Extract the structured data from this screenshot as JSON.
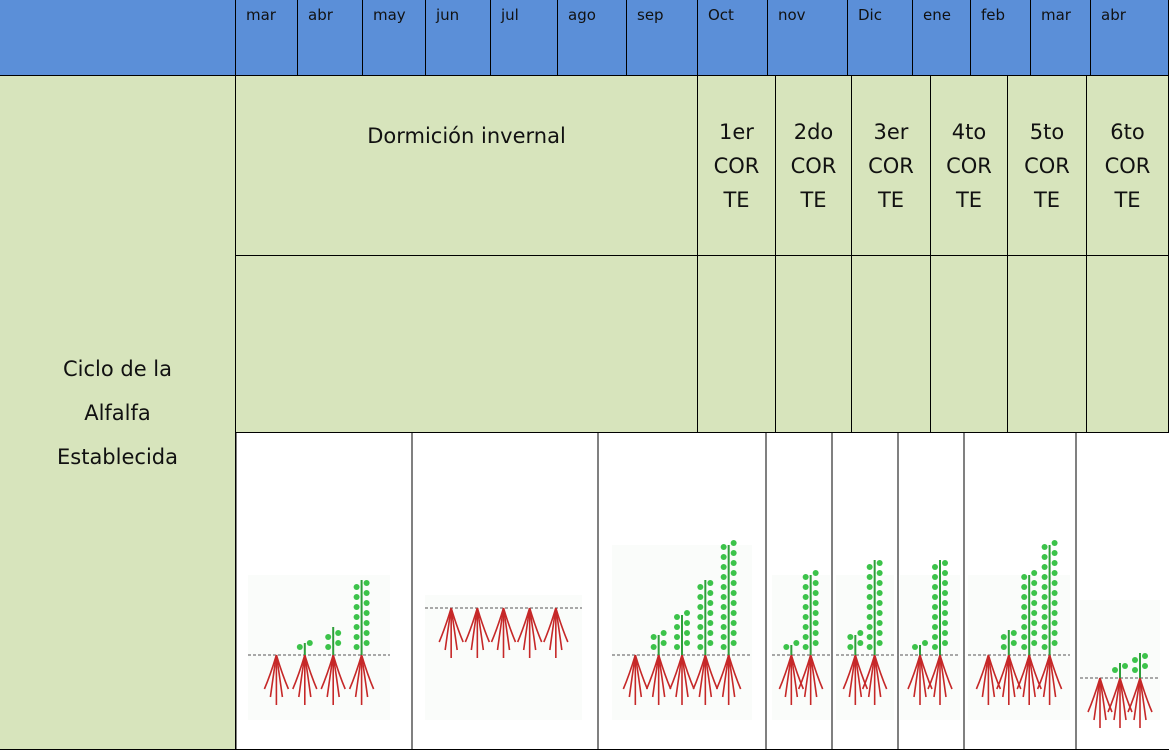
{
  "header": {
    "months": [
      "mar",
      "abr",
      "may",
      "jun",
      "jul",
      "ago",
      "sep",
      "Oct",
      "nov",
      "Dic",
      "ene",
      "feb",
      "mar",
      "abr"
    ]
  },
  "table": {
    "row_label": [
      "Ciclo de la",
      "Alfalfa",
      "Establecida"
    ],
    "dormancy": "Dormición invernal",
    "cuts": [
      [
        "1er",
        "COR",
        "TE"
      ],
      [
        "2do",
        "COR",
        "TE"
      ],
      [
        "3er",
        "COR",
        "TE"
      ],
      [
        "4to",
        "COR",
        "TE"
      ],
      [
        "5to",
        "COR",
        "TE"
      ],
      [
        "6to",
        "COR",
        "TE"
      ]
    ]
  }
}
